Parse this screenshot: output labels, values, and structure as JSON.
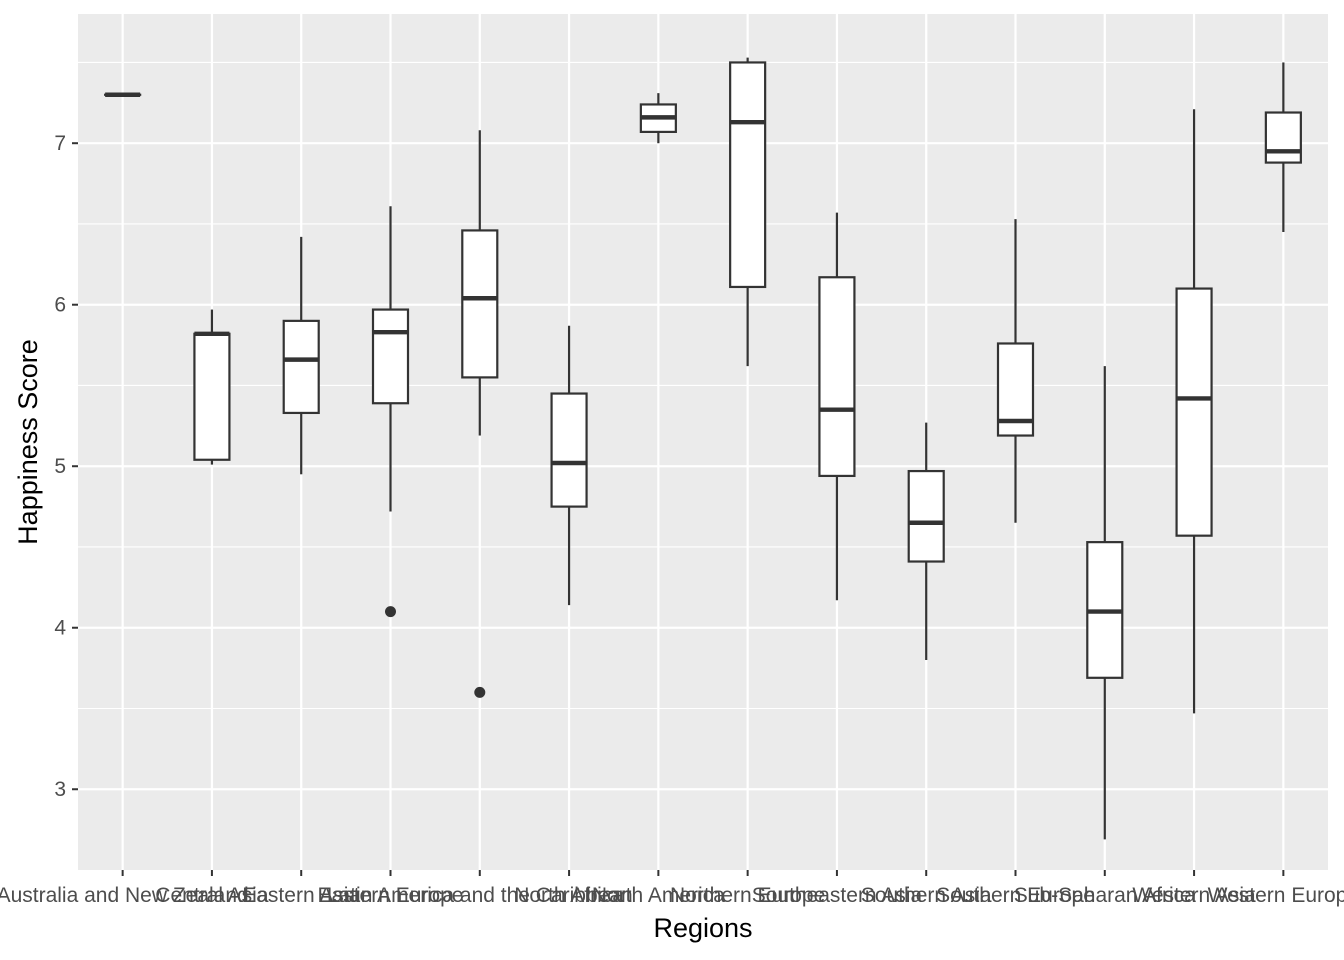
{
  "chart_data": {
    "type": "boxplot",
    "xlabel": "Regions",
    "ylabel": "Happiness Score",
    "ylim": [
      2.5,
      7.8
    ],
    "yticks": [
      3,
      4,
      5,
      6,
      7
    ],
    "grid": true,
    "legend": "none",
    "colors": {
      "panel": "#ebebeb",
      "grid": "#ffffff",
      "box_fill": "#ffffff",
      "box_line": "#333333",
      "tick_text": "#4d4d4d"
    },
    "categories": [
      "Australia and New Zealand",
      "Central Asia",
      "Eastern Asia",
      "Eastern Europe",
      "Latin America and the Caribbean",
      "North Africa",
      "North America",
      "Northern Europe",
      "Southeastern Asia",
      "Southern Asia",
      "Southern Europe",
      "Sub-Saharan Africa",
      "Western Asia",
      "Western Europe"
    ],
    "boxes": [
      {
        "min": 7.3,
        "q1": 7.3,
        "median": 7.3,
        "q3": 7.3,
        "max": 7.3,
        "outliers": []
      },
      {
        "min": 5.01,
        "q1": 5.04,
        "median": 5.82,
        "q3": 5.82,
        "max": 5.97,
        "outliers": []
      },
      {
        "min": 4.95,
        "q1": 5.33,
        "median": 5.66,
        "q3": 5.9,
        "max": 6.42,
        "outliers": []
      },
      {
        "min": 4.72,
        "q1": 5.39,
        "median": 5.83,
        "q3": 5.97,
        "max": 6.61,
        "outliers": [
          4.1
        ]
      },
      {
        "min": 5.19,
        "q1": 5.55,
        "median": 6.04,
        "q3": 6.46,
        "max": 7.08,
        "outliers": [
          3.6
        ]
      },
      {
        "min": 4.14,
        "q1": 4.75,
        "median": 5.02,
        "q3": 5.45,
        "max": 5.87,
        "outliers": []
      },
      {
        "min": 7.0,
        "q1": 7.07,
        "median": 7.16,
        "q3": 7.24,
        "max": 7.31,
        "outliers": []
      },
      {
        "min": 5.62,
        "q1": 6.11,
        "median": 7.13,
        "q3": 7.5,
        "max": 7.53,
        "outliers": []
      },
      {
        "min": 4.17,
        "q1": 4.94,
        "median": 5.35,
        "q3": 6.17,
        "max": 6.57,
        "outliers": []
      },
      {
        "min": 3.8,
        "q1": 4.41,
        "median": 4.65,
        "q3": 4.97,
        "max": 5.27,
        "outliers": []
      },
      {
        "min": 4.65,
        "q1": 5.19,
        "median": 5.28,
        "q3": 5.76,
        "max": 6.53,
        "outliers": []
      },
      {
        "min": 2.69,
        "q1": 3.69,
        "median": 4.1,
        "q3": 4.53,
        "max": 5.62,
        "outliers": []
      },
      {
        "min": 3.47,
        "q1": 4.57,
        "median": 5.42,
        "q3": 6.1,
        "max": 7.21,
        "outliers": []
      },
      {
        "min": 6.45,
        "q1": 6.88,
        "median": 6.95,
        "q3": 7.19,
        "max": 7.5,
        "outliers": []
      }
    ]
  }
}
